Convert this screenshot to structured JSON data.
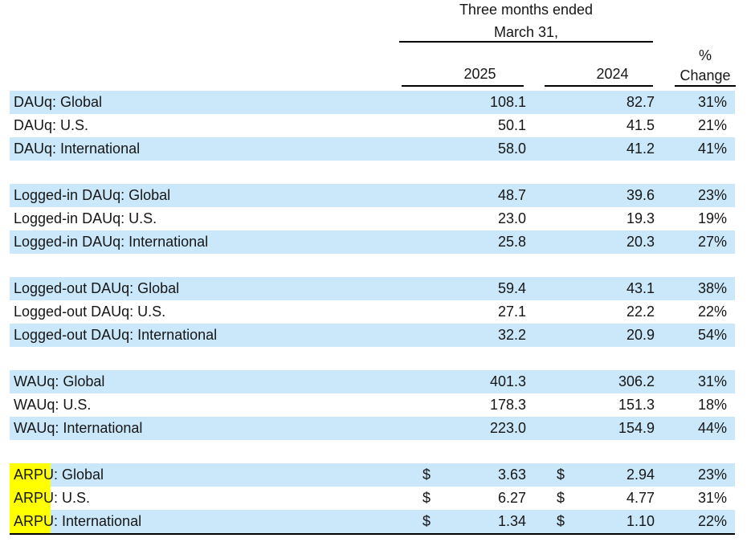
{
  "colors": {
    "row_highlight_blue": "#cbe8fa",
    "arpu_highlight_yellow": "#ffff00",
    "text": "#161616",
    "rule": "#000000"
  },
  "header": {
    "period_line1": "Three months ended",
    "period_line2": "March 31,",
    "col_2025": "2025",
    "col_2024": "2024",
    "pct_line1": "%",
    "pct_line2": "Change"
  },
  "table": {
    "groups": [
      {
        "rows": [
          {
            "label": "DAUq: Global",
            "highlight": null,
            "currency": null,
            "y2025": "108.1",
            "y2024": "82.7",
            "change": "31%"
          },
          {
            "label": "DAUq: U.S.",
            "highlight": null,
            "currency": null,
            "y2025": "50.1",
            "y2024": "41.5",
            "change": "21%"
          },
          {
            "label": "DAUq: International",
            "highlight": null,
            "currency": null,
            "y2025": "58.0",
            "y2024": "41.2",
            "change": "41%"
          }
        ]
      },
      {
        "rows": [
          {
            "label": "Logged-in DAUq: Global",
            "highlight": null,
            "currency": null,
            "y2025": "48.7",
            "y2024": "39.6",
            "change": "23%"
          },
          {
            "label": "Logged-in DAUq: U.S.",
            "highlight": null,
            "currency": null,
            "y2025": "23.0",
            "y2024": "19.3",
            "change": "19%"
          },
          {
            "label": "Logged-in DAUq: International",
            "highlight": null,
            "currency": null,
            "y2025": "25.8",
            "y2024": "20.3",
            "change": "27%"
          }
        ]
      },
      {
        "rows": [
          {
            "label": "Logged-out DAUq: Global",
            "highlight": null,
            "currency": null,
            "y2025": "59.4",
            "y2024": "43.1",
            "change": "38%"
          },
          {
            "label": "Logged-out DAUq: U.S.",
            "highlight": null,
            "currency": null,
            "y2025": "27.1",
            "y2024": "22.2",
            "change": "22%"
          },
          {
            "label": "Logged-out DAUq: International",
            "highlight": null,
            "currency": null,
            "y2025": "32.2",
            "y2024": "20.9",
            "change": "54%"
          }
        ]
      },
      {
        "rows": [
          {
            "label": "WAUq: Global",
            "highlight": null,
            "currency": null,
            "y2025": "401.3",
            "y2024": "306.2",
            "change": "31%"
          },
          {
            "label": "WAUq: U.S.",
            "highlight": null,
            "currency": null,
            "y2025": "178.3",
            "y2024": "151.3",
            "change": "18%"
          },
          {
            "label": "WAUq: International",
            "highlight": null,
            "currency": null,
            "y2025": "223.0",
            "y2024": "154.9",
            "change": "44%"
          }
        ]
      },
      {
        "rows": [
          {
            "label": "ARPU: Global",
            "highlight": "ARPU",
            "currency": "$",
            "y2025": "3.63",
            "y2024": "2.94",
            "change": "23%"
          },
          {
            "label": "ARPU: U.S.",
            "highlight": "ARPU",
            "currency": "$",
            "y2025": "6.27",
            "y2024": "4.77",
            "change": "31%"
          },
          {
            "label": "ARPU: International",
            "highlight": "ARPU",
            "currency": "$",
            "y2025": "1.34",
            "y2024": "1.10",
            "change": "22%"
          }
        ]
      }
    ]
  }
}
